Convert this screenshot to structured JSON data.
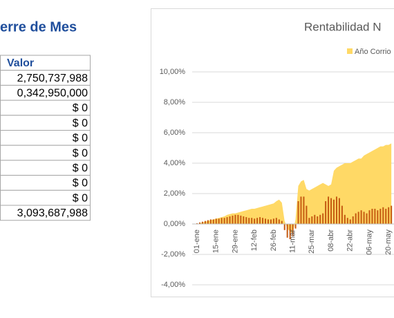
{
  "table": {
    "title": "erre de Mes",
    "header": "Valor",
    "rows": [
      "2,750,737,988",
      "0,342,950,000",
      "$ 0",
      "$ 0",
      "$ 0",
      "$ 0",
      "$ 0",
      "$ 0",
      "$ 0",
      "3,093,687,988"
    ]
  },
  "chart_data": {
    "type": "bar-area",
    "title": "Rentabilidad N",
    "categories": [
      "01-ene",
      null,
      null,
      null,
      null,
      null,
      null,
      "15-ene",
      null,
      null,
      null,
      null,
      null,
      null,
      "29-ene",
      null,
      null,
      null,
      null,
      null,
      null,
      "12-feb",
      null,
      null,
      null,
      null,
      null,
      null,
      "26-feb",
      null,
      null,
      null,
      null,
      null,
      null,
      "11-mar",
      null,
      null,
      null,
      null,
      null,
      null,
      "25-mar",
      null,
      null,
      null,
      null,
      null,
      null,
      "08-abr",
      null,
      null,
      null,
      null,
      null,
      null,
      "22-abr",
      null,
      null,
      null,
      null,
      null,
      null,
      "06-may",
      null,
      null,
      null,
      null,
      null,
      null,
      "20-may",
      null
    ],
    "series": [
      {
        "name": "Año Corrio",
        "color": "#ffd966",
        "kind": "area",
        "values": [
          0,
          0.05,
          0.1,
          0.15,
          0.2,
          0.25,
          0.3,
          0.35,
          0.4,
          0.45,
          0.5,
          0.6,
          0.65,
          0.7,
          0.7,
          0.75,
          0.8,
          0.85,
          0.9,
          0.95,
          1.0,
          1.0,
          1.05,
          1.1,
          1.15,
          1.2,
          1.25,
          1.3,
          1.35,
          1.5,
          1.6,
          1.4,
          0.2,
          -0.3,
          -0.5,
          -0.6,
          0.3,
          2.5,
          2.8,
          2.9,
          2.3,
          2.2,
          2.3,
          2.4,
          2.5,
          2.6,
          2.7,
          2.6,
          2.5,
          2.6,
          3.5,
          3.7,
          3.8,
          3.9,
          4.0,
          4.0,
          4.0,
          4.1,
          4.2,
          4.3,
          4.3,
          4.5,
          4.6,
          4.7,
          4.8,
          4.9,
          5.0,
          5.1,
          5.1,
          5.2,
          5.2,
          5.3
        ]
      },
      {
        "color": "#c55a11",
        "kind": "bar",
        "values": [
          0.05,
          0.1,
          0.15,
          0.2,
          0.25,
          0.3,
          0.3,
          0.35,
          0.35,
          0.4,
          0.4,
          0.45,
          0.5,
          0.55,
          0.6,
          0.6,
          0.55,
          0.5,
          0.45,
          0.4,
          0.4,
          0.35,
          0.4,
          0.45,
          0.4,
          0.35,
          0.3,
          0.3,
          0.35,
          0.4,
          0.3,
          0.2,
          -0.4,
          -0.9,
          -1.0,
          -0.8,
          -0.3,
          1.5,
          1.8,
          1.8,
          1.2,
          0.4,
          0.5,
          0.6,
          0.5,
          0.6,
          0.7,
          1.5,
          1.8,
          1.7,
          1.6,
          1.8,
          1.7,
          1.2,
          0.6,
          0.4,
          0.3,
          0.5,
          0.7,
          0.8,
          0.9,
          0.8,
          0.7,
          0.9,
          1.0,
          1.0,
          0.9,
          1.0,
          1.1,
          1.0,
          1.1,
          1.2
        ]
      }
    ],
    "ylim": [
      -4,
      10
    ],
    "yticks": [
      {
        "value": -4,
        "label": "-4,00%"
      },
      {
        "value": -2,
        "label": "-2,00%"
      },
      {
        "value": 0,
        "label": "0,00%"
      },
      {
        "value": 2,
        "label": "2,00%"
      },
      {
        "value": 4,
        "label": "4,00%"
      },
      {
        "value": 6,
        "label": "6,00%"
      },
      {
        "value": 8,
        "label": "8,00%"
      },
      {
        "value": 10,
        "label": "10,00%"
      }
    ],
    "grid": true,
    "legend": "top-right"
  }
}
